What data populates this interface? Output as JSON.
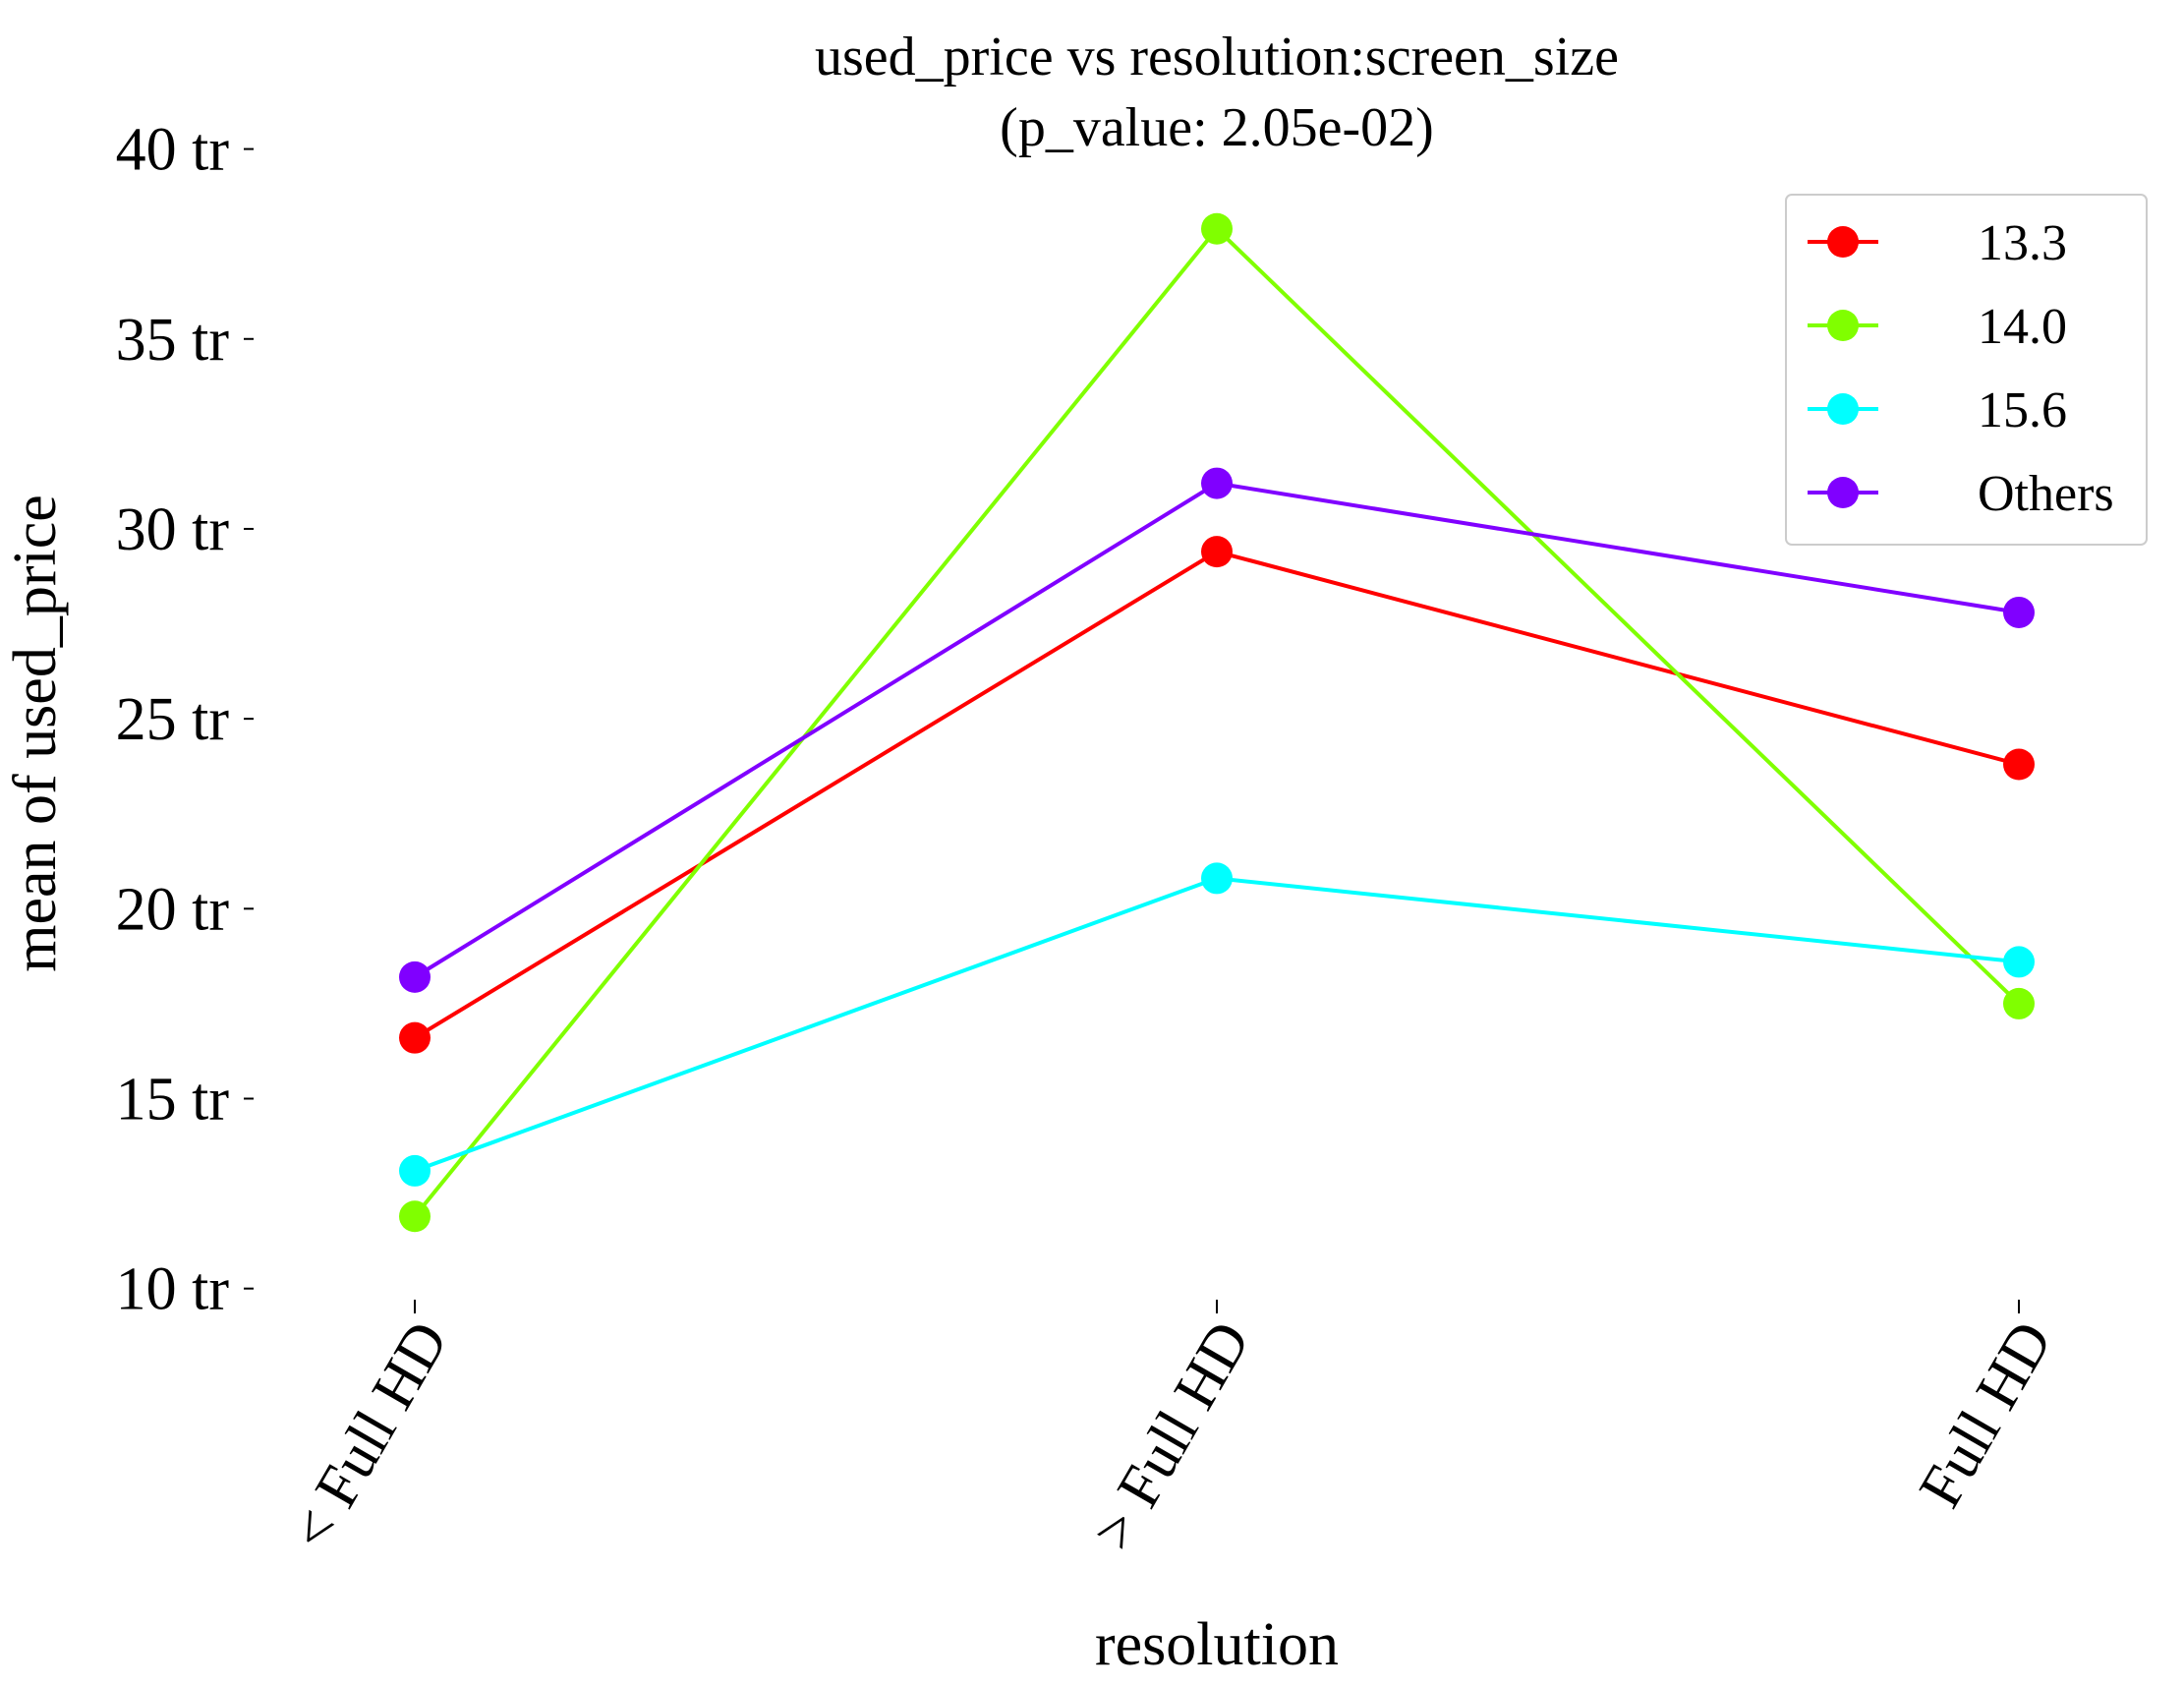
{
  "chart_data": {
    "type": "line",
    "title_line1": "used_price vs resolution:screen_size",
    "title_line2": "(p_value: 2.05e-02)",
    "xlabel": "resolution",
    "ylabel": "mean of used_price",
    "categories": [
      "< Full HD",
      "> Full HD",
      "Full HD"
    ],
    "ylim": [
      9.5,
      40.3
    ],
    "yticks": [
      10,
      15,
      20,
      25,
      30,
      35,
      40
    ],
    "ytick_labels": [
      "10 tr",
      "15 tr",
      "20 tr",
      "25 tr",
      "30 tr",
      "35 tr",
      "40 tr"
    ],
    "grid": false,
    "legend_position": "top-right",
    "series": [
      {
        "name": "13.3",
        "color": "#ff0000",
        "values": [
          16.6,
          29.4,
          23.8
        ]
      },
      {
        "name": "14.0",
        "color": "#80ff00",
        "values": [
          11.9,
          37.9,
          17.5
        ]
      },
      {
        "name": "15.6",
        "color": "#00ffff",
        "values": [
          13.1,
          20.8,
          18.6
        ]
      },
      {
        "name": "Others",
        "color": "#8000ff",
        "values": [
          18.2,
          31.2,
          27.8
        ]
      }
    ]
  }
}
